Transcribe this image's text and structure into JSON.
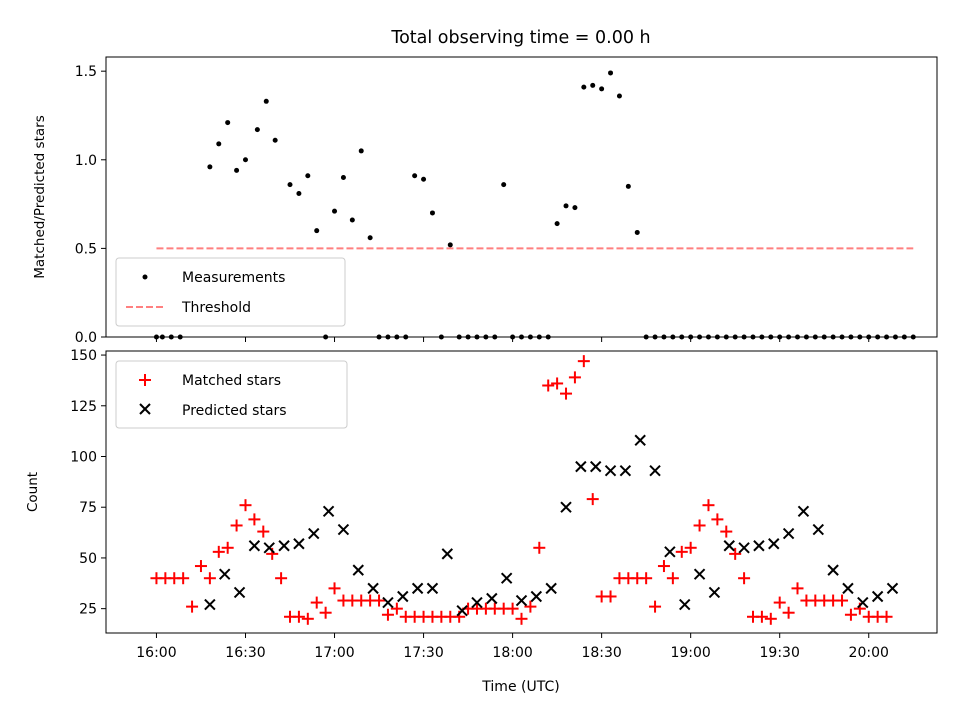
{
  "chart_data": [
    {
      "type": "scatter",
      "title": "Total observing time = 0.00 h",
      "xlabel": "",
      "ylabel": "Matched/Predicted stars",
      "ylim": [
        0,
        1.58
      ],
      "yticks": [
        "0.0",
        "0.5",
        "1.0",
        "1.5"
      ],
      "legend_position": "lower-left",
      "series": [
        {
          "name": "Measurements",
          "marker": "dot",
          "color": "#000000",
          "x": [
            "16:00",
            "16:02",
            "16:05",
            "16:08",
            "16:18",
            "16:21",
            "16:24",
            "16:27",
            "16:30",
            "16:34",
            "16:37",
            "16:40",
            "16:45",
            "16:48",
            "16:51",
            "16:54",
            "16:57",
            "17:00",
            "17:03",
            "17:06",
            "17:09",
            "17:12",
            "17:15",
            "17:18",
            "17:21",
            "17:24",
            "17:27",
            "17:30",
            "17:33",
            "17:36",
            "17:39",
            "17:42",
            "17:45",
            "17:48",
            "17:51",
            "17:54",
            "17:57",
            "18:00",
            "18:03",
            "18:06",
            "18:09",
            "18:12",
            "18:15",
            "18:18",
            "18:21",
            "18:24",
            "18:27",
            "18:30",
            "18:33",
            "18:36",
            "18:39",
            "18:42",
            "18:45",
            "18:48",
            "18:51",
            "18:54",
            "18:57",
            "19:00",
            "19:03",
            "19:06",
            "19:09",
            "19:12",
            "19:15",
            "19:18",
            "19:21",
            "19:24",
            "19:27",
            "19:30",
            "19:33",
            "19:36",
            "19:39",
            "19:42",
            "19:45",
            "19:48",
            "19:51",
            "19:54",
            "19:57",
            "20:00",
            "20:03",
            "20:06",
            "20:09",
            "20:12",
            "20:15"
          ],
          "values": [
            0,
            0,
            0,
            0,
            0.96,
            1.09,
            1.21,
            0.94,
            1.0,
            1.17,
            1.33,
            1.11,
            0.86,
            0.81,
            0.91,
            0.6,
            0,
            0.71,
            0.9,
            0.66,
            1.05,
            0.56,
            0,
            0,
            0,
            0,
            0.91,
            0.89,
            0.7,
            0,
            0.52,
            0,
            0,
            0,
            0,
            0,
            0.86,
            0,
            0,
            0,
            0,
            0,
            0.64,
            0.74,
            0.73,
            1.41,
            1.42,
            1.4,
            1.49,
            1.36,
            0.85,
            0.59,
            0,
            0,
            0,
            0,
            0,
            0,
            0,
            0,
            0,
            0,
            0,
            0,
            0,
            0,
            0,
            0,
            0,
            0,
            0,
            0,
            0,
            0,
            0,
            0,
            0,
            0,
            0,
            0,
            0,
            0,
            0
          ]
        },
        {
          "name": "Threshold",
          "type": "line",
          "style": "dashed",
          "color": "#ff8080",
          "x": [
            "16:00",
            "20:15"
          ],
          "values": [
            0.5,
            0.5
          ]
        }
      ]
    },
    {
      "type": "scatter",
      "title": "",
      "xlabel": "Time (UTC)",
      "ylabel": "Count",
      "ylim": [
        13,
        152
      ],
      "yticks": [
        "25",
        "50",
        "75",
        "100",
        "125",
        "150"
      ],
      "xticks": [
        "16:00",
        "16:30",
        "17:00",
        "17:30",
        "18:00",
        "18:30",
        "19:00",
        "19:30",
        "20:00"
      ],
      "legend_position": "upper-left",
      "series": [
        {
          "name": "Matched stars",
          "marker": "plus",
          "color": "#ff0000",
          "x": [
            "16:00",
            "16:03",
            "16:06",
            "16:09",
            "16:12",
            "16:15",
            "16:18",
            "16:21",
            "16:24",
            "16:27",
            "16:30",
            "16:33",
            "16:36",
            "16:39",
            "16:42",
            "16:45",
            "16:48",
            "16:51",
            "16:54",
            "16:57",
            "17:00",
            "17:03",
            "17:06",
            "17:09",
            "17:12",
            "17:15",
            "17:18",
            "17:21",
            "17:24",
            "17:27",
            "17:30",
            "17:33",
            "17:36",
            "17:39",
            "17:42",
            "17:45",
            "17:48",
            "17:51",
            "17:54",
            "17:57",
            "18:00",
            "18:03",
            "18:06",
            "18:09",
            "18:12",
            "18:15",
            "18:18",
            "18:21",
            "18:24",
            "18:27",
            "18:30",
            "18:33",
            "18:36",
            "18:39",
            "18:42",
            "18:45",
            "18:48",
            "18:51",
            "18:54",
            "18:57",
            "19:00",
            "19:03",
            "19:06",
            "19:09",
            "19:12",
            "19:15",
            "19:18",
            "19:21",
            "19:24",
            "19:27",
            "19:30",
            "19:33",
            "19:36",
            "19:39",
            "19:42",
            "19:45",
            "19:48",
            "19:51",
            "19:54",
            "19:57",
            "20:00",
            "20:03",
            "20:06"
          ],
          "values": [
            40,
            40,
            40,
            40,
            26,
            46,
            40,
            53,
            55,
            66,
            76,
            69,
            63,
            52,
            40,
            21,
            21,
            20,
            28,
            23,
            35,
            29,
            29,
            29,
            29,
            29,
            22,
            25,
            21,
            21,
            21,
            21,
            21,
            21,
            21,
            25,
            25,
            25,
            25,
            25,
            25,
            20,
            26,
            55,
            135,
            136,
            131,
            139,
            147,
            79,
            31,
            31,
            40,
            40,
            40,
            40,
            26,
            46,
            40,
            53,
            55,
            66,
            76,
            69,
            63,
            52,
            40,
            21,
            21,
            20,
            28,
            23,
            35,
            29,
            29,
            29,
            29,
            29,
            22,
            25,
            21,
            21,
            21
          ]
        },
        {
          "name": "Predicted stars",
          "marker": "x",
          "color": "#000000",
          "x": [
            "16:18",
            "16:23",
            "16:28",
            "16:33",
            "16:38",
            "16:43",
            "16:48",
            "16:53",
            "16:58",
            "17:03",
            "17:08",
            "17:13",
            "17:18",
            "17:23",
            "17:28",
            "17:33",
            "17:38",
            "17:43",
            "17:48",
            "17:53",
            "17:58",
            "18:03",
            "18:08",
            "18:13",
            "18:18",
            "18:23",
            "18:28",
            "18:33",
            "18:38",
            "18:43",
            "18:48",
            "18:53",
            "18:58",
            "19:03",
            "19:08",
            "19:13",
            "19:18",
            "19:23",
            "19:28",
            "19:33",
            "19:38",
            "19:43",
            "19:48",
            "19:53",
            "19:58",
            "20:03",
            "20:08"
          ],
          "values": [
            27,
            42,
            33,
            56,
            55,
            56,
            57,
            62,
            73,
            64,
            44,
            35,
            28,
            31,
            35,
            35,
            52,
            24,
            28,
            30,
            40,
            29,
            31,
            35,
            75,
            95,
            95,
            93,
            93,
            108,
            93,
            53,
            27,
            42,
            33,
            56,
            55,
            56,
            57,
            62,
            73,
            64,
            44,
            35,
            28,
            31,
            35
          ]
        }
      ]
    }
  ]
}
